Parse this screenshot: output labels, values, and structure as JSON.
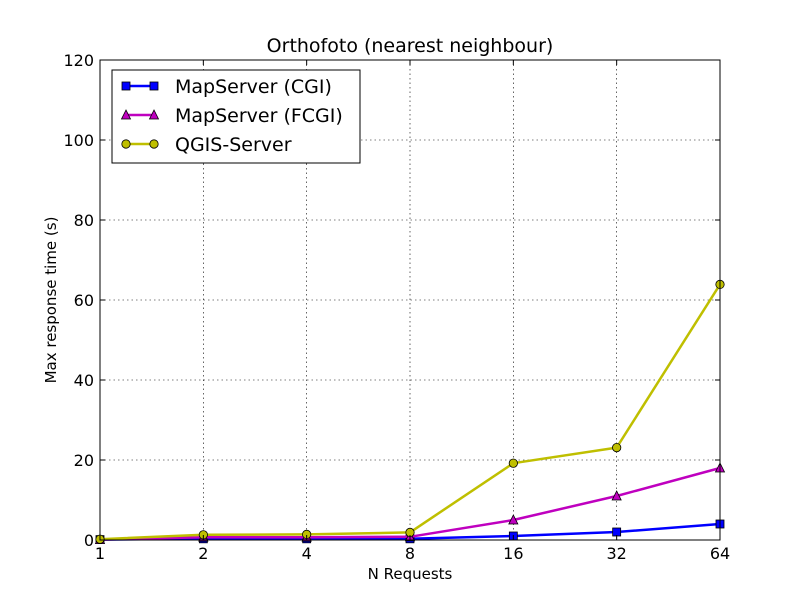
{
  "chart_data": {
    "type": "line",
    "title": "Orthofoto (nearest neighbour)",
    "xlabel": "N Requests",
    "ylabel": "Max response time (s)",
    "x_scale": "log2",
    "x": [
      1,
      2,
      4,
      8,
      16,
      32,
      64
    ],
    "xticks": [
      "1",
      "2",
      "4",
      "8",
      "16",
      "32",
      "64"
    ],
    "yticks": [
      "0",
      "20",
      "40",
      "60",
      "80",
      "100",
      "120"
    ],
    "xlim": [
      1,
      64
    ],
    "ylim": [
      0,
      120
    ],
    "grid": true,
    "legend_position": "top-left",
    "series": [
      {
        "name": "MapServer (CGI)",
        "color": "#0000ff",
        "marker": "square",
        "values": [
          0.1,
          0.3,
          0.3,
          0.3,
          1.0,
          2.0,
          4.0
        ]
      },
      {
        "name": "MapServer (FCGI)",
        "color": "#bf00bf",
        "marker": "triangle",
        "values": [
          0.1,
          0.7,
          0.7,
          0.8,
          5.0,
          11.0,
          18.0
        ]
      },
      {
        "name": "QGIS-Server",
        "color": "#bfbf00",
        "marker": "circle",
        "values": [
          0.2,
          1.3,
          1.4,
          1.9,
          19.2,
          23.1,
          63.9
        ]
      }
    ]
  }
}
